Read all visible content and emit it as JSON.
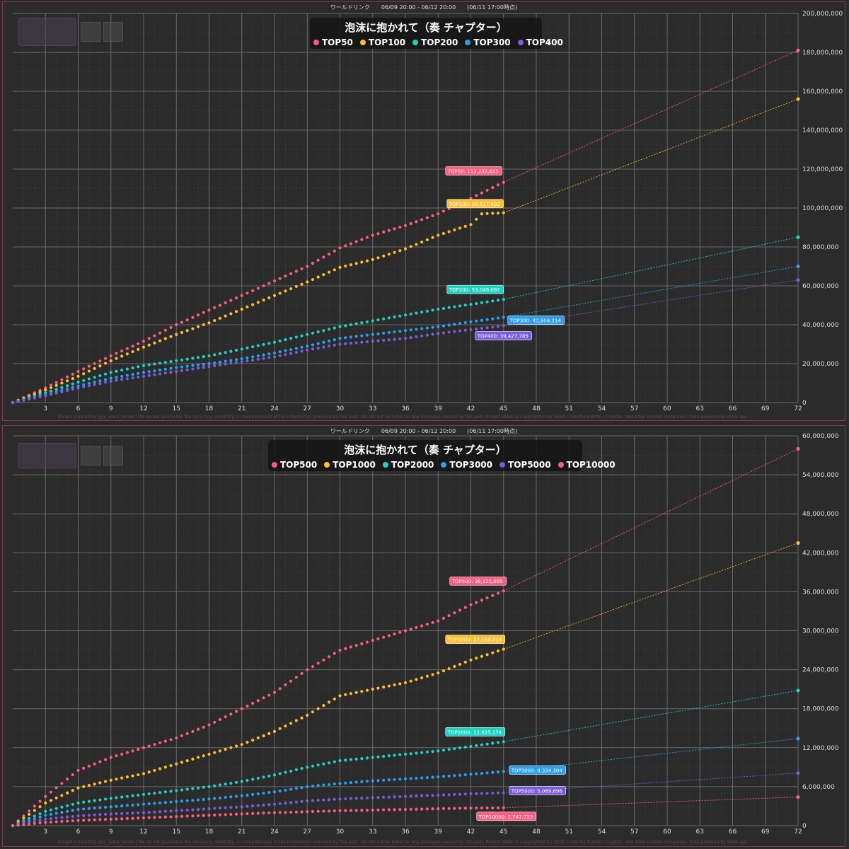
{
  "charts_meta": [
    {
      "header": "ワールドリンク　　06/09 20:00 - 06/12 20:00　　(06/11 17:00時点)",
      "footer": "[Graph created by @pj_sekai_border]  We do not guarantee the accuracy, reliability, or completeness of the information provided by this post. We will not be liable for any damages caused by this post. Project SEKAI is copyrighted by SEGA / Colorful Palette / Crypton, and other related companies. Data powered by sekai-api."
    },
    {
      "header": "ワールドリンク　　06/09 20:00 - 06/12 20:00　　(06/11 17:00時点)",
      "footer": "[Graph created by @pj_sekai_border]  We do not guarantee the accuracy, reliability, or completeness of the information provided by this post. We will not be liable for any damages caused by this post. Project SEKAI is copyrighted by SEGA / Colorful Palette / Crypton, and other related companies. Data powered by sekai-api."
    }
  ],
  "chart_data": [
    {
      "type": "line",
      "title": "泡沫に抱かれて（奏 チャプター）",
      "xlabel": "",
      "ylabel": "",
      "xlim": [
        0,
        72
      ],
      "ylim": [
        0,
        200000000
      ],
      "x_ticks": [
        3,
        6,
        9,
        12,
        15,
        18,
        21,
        24,
        27,
        30,
        33,
        36,
        39,
        42,
        45,
        48,
        51,
        54,
        57,
        60,
        63,
        66,
        69,
        72
      ],
      "y_ticks": [
        0,
        20000000,
        40000000,
        60000000,
        80000000,
        100000000,
        120000000,
        140000000,
        160000000,
        180000000,
        200000000
      ],
      "y_tick_labels": [
        "0",
        "20,000,000",
        "40,000,000",
        "60,000,000",
        "80,000,000",
        "100,000,000",
        "120,000,000",
        "140,000,000",
        "160,000,000",
        "180,000,000",
        "200,000,000"
      ],
      "grid": true,
      "legend_position": "top-center",
      "series": [
        {
          "name": "TOP50",
          "color": "#ff5c80",
          "label": "TOP50: 113,232,625",
          "points": [
            [
              0,
              0
            ],
            [
              3,
              7500000
            ],
            [
              6,
              16000000
            ],
            [
              9,
              24000000
            ],
            [
              12,
              31500000
            ],
            [
              15,
              40000000
            ],
            [
              18,
              47500000
            ],
            [
              21,
              55000000
            ],
            [
              24,
              62500000
            ],
            [
              27,
              70000000
            ],
            [
              30,
              79500000
            ],
            [
              33,
              86000000
            ],
            [
              36,
              91000000
            ],
            [
              39,
              97000000
            ],
            [
              42,
              105000000
            ],
            [
              45,
              113232625
            ]
          ],
          "projection": [
            [
              45,
              113232625
            ],
            [
              72,
              181000000
            ]
          ]
        },
        {
          "name": "TOP100",
          "color": "#ffbe2e",
          "label": "TOP100: 97,517,602",
          "points": [
            [
              0,
              0
            ],
            [
              3,
              6500000
            ],
            [
              6,
              13500000
            ],
            [
              9,
              21500000
            ],
            [
              12,
              28500000
            ],
            [
              15,
              35000000
            ],
            [
              18,
              41000000
            ],
            [
              21,
              48000000
            ],
            [
              24,
              55000000
            ],
            [
              27,
              62000000
            ],
            [
              30,
              69500000
            ],
            [
              33,
              73500000
            ],
            [
              36,
              79000000
            ],
            [
              39,
              86000000
            ],
            [
              42,
              91500000
            ],
            [
              43,
              97000000
            ],
            [
              45,
              97517602
            ]
          ],
          "projection": [
            [
              45,
              97517602
            ],
            [
              72,
              156000000
            ]
          ]
        },
        {
          "name": "TOP200",
          "color": "#1ed2c3",
          "label": "TOP200: 53,049,097",
          "points": [
            [
              0,
              0
            ],
            [
              3,
              5000000
            ],
            [
              6,
              10500000
            ],
            [
              9,
              15500000
            ],
            [
              12,
              19000000
            ],
            [
              15,
              21500000
            ],
            [
              18,
              24000000
            ],
            [
              21,
              27500000
            ],
            [
              24,
              31000000
            ],
            [
              27,
              35000000
            ],
            [
              30,
              39000000
            ],
            [
              33,
              42000000
            ],
            [
              36,
              45000000
            ],
            [
              39,
              48000000
            ],
            [
              42,
              50500000
            ],
            [
              45,
              53049097
            ]
          ],
          "projection": [
            [
              45,
              53049097
            ],
            [
              72,
              85000000
            ]
          ]
        },
        {
          "name": "TOP300",
          "color": "#28a0f0",
          "label": "TOP300: 43,808,214",
          "points": [
            [
              0,
              0
            ],
            [
              3,
              4000000
            ],
            [
              6,
              8500000
            ],
            [
              9,
              12500000
            ],
            [
              12,
              15500000
            ],
            [
              15,
              18000000
            ],
            [
              18,
              20000000
            ],
            [
              21,
              22500000
            ],
            [
              24,
              25500000
            ],
            [
              27,
              29000000
            ],
            [
              30,
              33000000
            ],
            [
              33,
              35000000
            ],
            [
              36,
              37000000
            ],
            [
              39,
              39000000
            ],
            [
              42,
              41500000
            ],
            [
              45,
              43808214
            ]
          ],
          "projection": [
            [
              45,
              43808214
            ],
            [
              72,
              70000000
            ]
          ]
        },
        {
          "name": "TOP400",
          "color": "#7b5cdc",
          "label": "TOP400: 39,427,785",
          "points": [
            [
              0,
              0
            ],
            [
              3,
              3500000
            ],
            [
              6,
              7500000
            ],
            [
              9,
              11000000
            ],
            [
              12,
              13500000
            ],
            [
              15,
              16000000
            ],
            [
              18,
              18500000
            ],
            [
              21,
              21000000
            ],
            [
              24,
              23500000
            ],
            [
              27,
              27000000
            ],
            [
              30,
              30000000
            ],
            [
              33,
              31500000
            ],
            [
              36,
              33000000
            ],
            [
              39,
              35500000
            ],
            [
              42,
              37500000
            ],
            [
              45,
              39427785
            ]
          ],
          "projection": [
            [
              45,
              39427785
            ],
            [
              72,
              63000000
            ]
          ]
        }
      ]
    },
    {
      "type": "line",
      "title": "泡沫に抱かれて（奏 チャプター）",
      "xlabel": "",
      "ylabel": "",
      "xlim": [
        0,
        72
      ],
      "ylim": [
        0,
        60000000
      ],
      "x_ticks": [
        3,
        6,
        9,
        12,
        15,
        18,
        21,
        24,
        27,
        30,
        33,
        36,
        39,
        42,
        45,
        48,
        51,
        54,
        57,
        60,
        63,
        66,
        69,
        72
      ],
      "y_ticks": [
        0,
        6000000,
        12000000,
        18000000,
        24000000,
        30000000,
        36000000,
        42000000,
        48000000,
        54000000,
        60000000
      ],
      "y_tick_labels": [
        "0",
        "6,000,000",
        "12,000,000",
        "18,000,000",
        "24,000,000",
        "30,000,000",
        "36,000,000",
        "42,000,000",
        "48,000,000",
        "54,000,000",
        "60,000,000"
      ],
      "grid": true,
      "legend_position": "top-center",
      "series": [
        {
          "name": "TOP500",
          "color": "#ff5c80",
          "label": "TOP500: 36,125,895",
          "points": [
            [
              0,
              0
            ],
            [
              3,
              4500000
            ],
            [
              6,
              8500000
            ],
            [
              9,
              10500000
            ],
            [
              12,
              12000000
            ],
            [
              15,
              13500000
            ],
            [
              18,
              15500000
            ],
            [
              21,
              18000000
            ],
            [
              24,
              20500000
            ],
            [
              27,
              24000000
            ],
            [
              30,
              27000000
            ],
            [
              33,
              28500000
            ],
            [
              36,
              30000000
            ],
            [
              39,
              31500000
            ],
            [
              42,
              34000000
            ],
            [
              45,
              36125895
            ]
          ],
          "projection": [
            [
              45,
              36125895
            ],
            [
              72,
              58000000
            ]
          ]
        },
        {
          "name": "TOP1000",
          "color": "#ffbe2e",
          "label": "TOP1000: 27,158,814",
          "points": [
            [
              0,
              0
            ],
            [
              3,
              3500000
            ],
            [
              6,
              5800000
            ],
            [
              9,
              7000000
            ],
            [
              12,
              8000000
            ],
            [
              15,
              9500000
            ],
            [
              18,
              11000000
            ],
            [
              21,
              12500000
            ],
            [
              24,
              14500000
            ],
            [
              27,
              17000000
            ],
            [
              30,
              20000000
            ],
            [
              33,
              21000000
            ],
            [
              36,
              22000000
            ],
            [
              39,
              23500000
            ],
            [
              42,
              25500000
            ],
            [
              45,
              27158814
            ]
          ],
          "projection": [
            [
              45,
              27158814
            ],
            [
              72,
              43500000
            ]
          ]
        },
        {
          "name": "TOP2000",
          "color": "#1ed2c3",
          "label": "TOP2000: 12,925,174",
          "points": [
            [
              0,
              0
            ],
            [
              3,
              2200000
            ],
            [
              6,
              3500000
            ],
            [
              9,
              4200000
            ],
            [
              12,
              4800000
            ],
            [
              15,
              5400000
            ],
            [
              18,
              6000000
            ],
            [
              21,
              6800000
            ],
            [
              24,
              7800000
            ],
            [
              27,
              9000000
            ],
            [
              30,
              10000000
            ],
            [
              33,
              10500000
            ],
            [
              36,
              11000000
            ],
            [
              39,
              11500000
            ],
            [
              42,
              12200000
            ],
            [
              45,
              12925174
            ]
          ],
          "projection": [
            [
              45,
              12925174
            ],
            [
              72,
              20800000
            ]
          ]
        },
        {
          "name": "TOP3000",
          "color": "#28a0f0",
          "label": "TOP3000: 8,334,304",
          "points": [
            [
              0,
              0
            ],
            [
              3,
              1600000
            ],
            [
              6,
              2500000
            ],
            [
              9,
              2900000
            ],
            [
              12,
              3300000
            ],
            [
              15,
              3700000
            ],
            [
              18,
              4100000
            ],
            [
              21,
              4600000
            ],
            [
              24,
              5200000
            ],
            [
              27,
              6000000
            ],
            [
              30,
              6500000
            ],
            [
              33,
              6900000
            ],
            [
              36,
              7200000
            ],
            [
              39,
              7500000
            ],
            [
              42,
              7900000
            ],
            [
              45,
              8334304
            ]
          ],
          "projection": [
            [
              45,
              8334304
            ],
            [
              72,
              13400000
            ]
          ]
        },
        {
          "name": "TOP5000",
          "color": "#7b5cdc",
          "label": "TOP5000: 5,069,696",
          "points": [
            [
              0,
              0
            ],
            [
              3,
              1000000
            ],
            [
              6,
              1500000
            ],
            [
              9,
              1800000
            ],
            [
              12,
              2000000
            ],
            [
              15,
              2300000
            ],
            [
              18,
              2600000
            ],
            [
              21,
              2900000
            ],
            [
              24,
              3300000
            ],
            [
              27,
              3800000
            ],
            [
              30,
              4100000
            ],
            [
              33,
              4300000
            ],
            [
              36,
              4500000
            ],
            [
              39,
              4700000
            ],
            [
              42,
              4900000
            ],
            [
              45,
              5069696
            ]
          ],
          "projection": [
            [
              45,
              5069696
            ],
            [
              72,
              8100000
            ]
          ]
        },
        {
          "name": "TOP10000",
          "color": "#ff5c80",
          "label": "TOP10000: 2,747,723",
          "points": [
            [
              0,
              0
            ],
            [
              3,
              500000
            ],
            [
              6,
              800000
            ],
            [
              9,
              1000000
            ],
            [
              12,
              1200000
            ],
            [
              15,
              1400000
            ],
            [
              18,
              1600000
            ],
            [
              21,
              1800000
            ],
            [
              24,
              2000000
            ],
            [
              27,
              2150000
            ],
            [
              30,
              2300000
            ],
            [
              33,
              2400000
            ],
            [
              36,
              2500000
            ],
            [
              39,
              2600000
            ],
            [
              42,
              2700000
            ],
            [
              45,
              2747723
            ]
          ],
          "projection": [
            [
              45,
              2747723
            ],
            [
              72,
              4400000
            ]
          ]
        }
      ]
    }
  ]
}
